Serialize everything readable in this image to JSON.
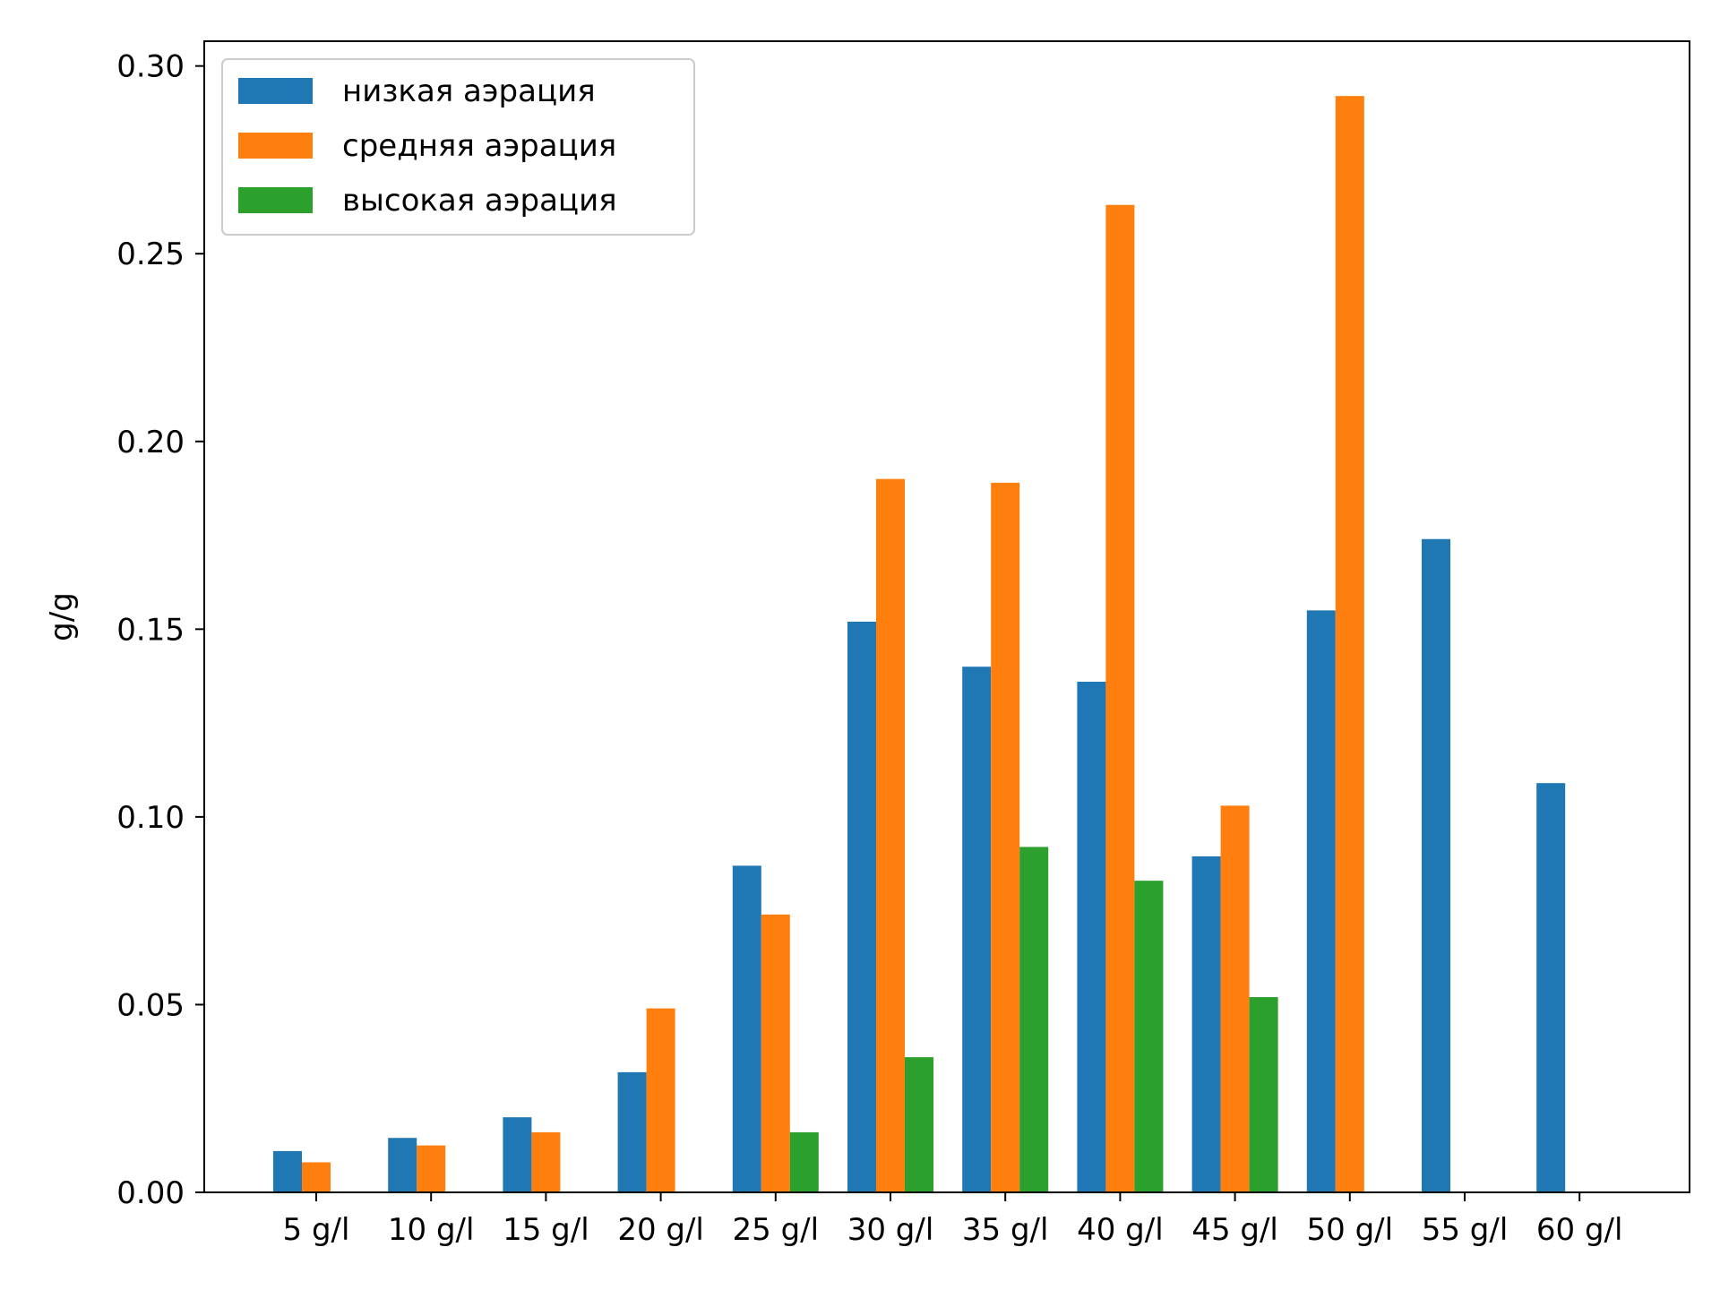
{
  "chart_data": {
    "type": "bar",
    "categories": [
      "5 g/l",
      "10 g/l",
      "15 g/l",
      "20 g/l",
      "25 g/l",
      "30 g/l",
      "35 g/l",
      "40 g/l",
      "45 g/l",
      "50 g/l",
      "55 g/l",
      "60 g/l"
    ],
    "series": [
      {
        "name": "низкая аэрация",
        "color": "#1f77b4",
        "values": [
          0.011,
          0.0145,
          0.02,
          0.032,
          0.087,
          0.152,
          0.14,
          0.136,
          0.0895,
          0.155,
          0.174,
          0.109
        ]
      },
      {
        "name": "средняя аэрация",
        "color": "#ff7f0e",
        "values": [
          0.008,
          0.0125,
          0.016,
          0.049,
          0.074,
          0.19,
          0.189,
          0.263,
          0.103,
          0.292,
          0,
          0
        ]
      },
      {
        "name": "высокая аэрация",
        "color": "#2ca02c",
        "values": [
          0,
          0,
          0,
          0,
          0.016,
          0.036,
          0.092,
          0.083,
          0.052,
          0,
          0,
          0
        ]
      }
    ],
    "title": "",
    "xlabel": "",
    "ylabel": "g/g",
    "ylim": [
      0,
      0.3066
    ],
    "yticks": [
      "0.00",
      "0.05",
      "0.10",
      "0.15",
      "0.20",
      "0.25",
      "0.30"
    ],
    "grid": false,
    "legend_position": "top-left"
  }
}
